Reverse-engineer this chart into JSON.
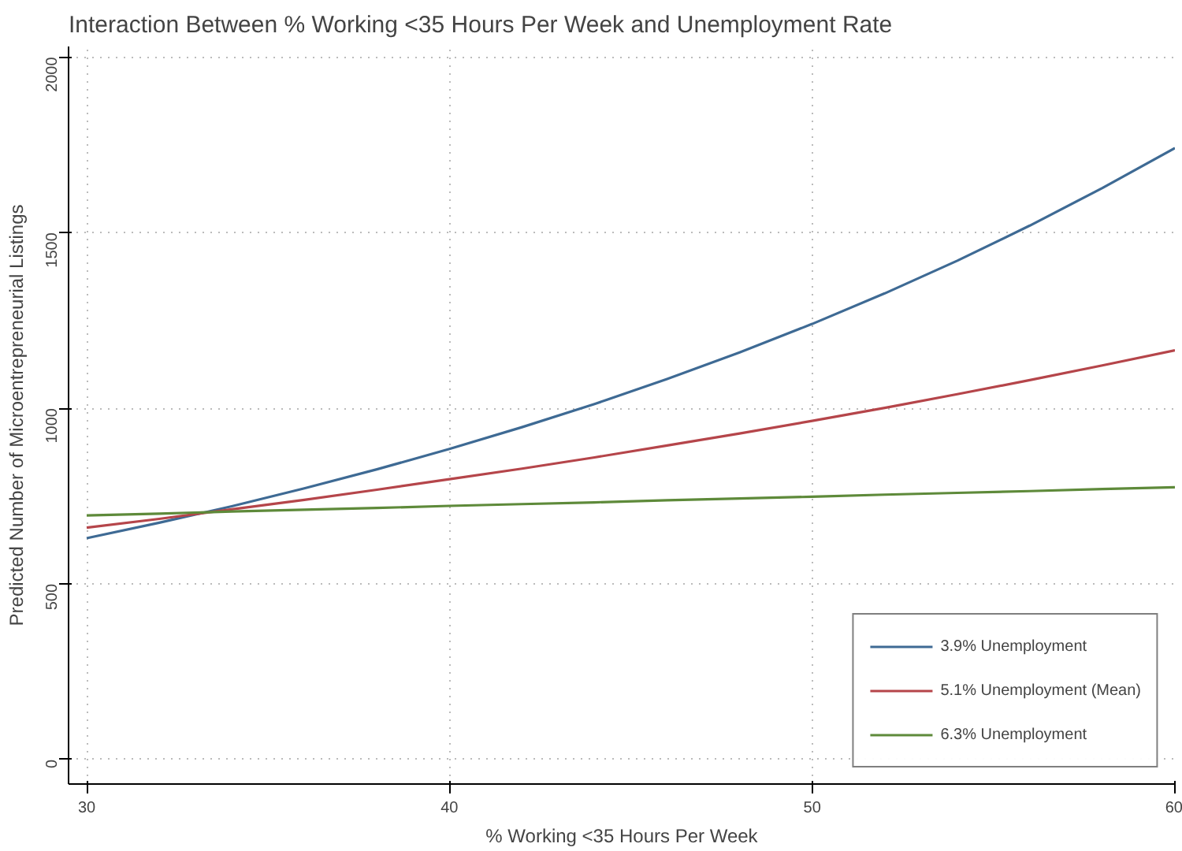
{
  "chart_data": {
    "type": "line",
    "title": "Interaction Between % Working <35 Hours Per Week and Unemployment Rate",
    "xlabel": "% Working <35 Hours Per Week",
    "ylabel": "Predicted Number of Microentrepreneurial Listings",
    "x": [
      30,
      32,
      34,
      36,
      38,
      40,
      42,
      44,
      46,
      48,
      50,
      52,
      54,
      56,
      58,
      60
    ],
    "series": [
      {
        "name": "3.9% Unemployment",
        "color": "#3e6a94",
        "values": [
          630,
          674,
          721,
          772,
          826,
          884,
          946,
          1012,
          1083,
          1159,
          1240,
          1327,
          1420,
          1520,
          1627,
          1741
        ]
      },
      {
        "name": "5.1% Unemployment (Mean)",
        "color": "#b5454a",
        "values": [
          660,
          685,
          712,
          739,
          768,
          798,
          828,
          860,
          894,
          928,
          964,
          1001,
          1040,
          1080,
          1122,
          1165
        ]
      },
      {
        "name": "6.3% Unemployment",
        "color": "#5e8a3a",
        "values": [
          695,
          700,
          706,
          711,
          716,
          722,
          727,
          732,
          738,
          743,
          748,
          754,
          759,
          764,
          770,
          775
        ]
      }
    ],
    "xlim": [
      29.5,
      60
    ],
    "ylim": [
      -70,
      2030
    ],
    "xticks": [
      30,
      40,
      50,
      60
    ],
    "yticks": [
      0,
      500,
      1000,
      1500,
      2000
    ],
    "grid": true,
    "legend": "bottom right",
    "marker": "none",
    "line_style": "solid"
  }
}
